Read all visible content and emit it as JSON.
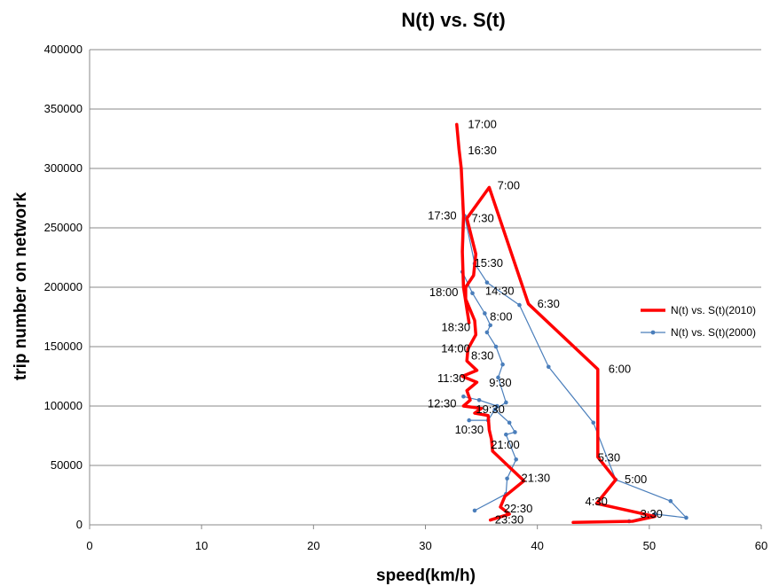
{
  "chart_data": {
    "type": "line",
    "title": "N(t) vs. S(t)",
    "xlabel": "speed(km/h)",
    "ylabel": "trip number on network",
    "xlim": [
      0,
      60
    ],
    "ylim": [
      0,
      400000
    ],
    "xticks": [
      0,
      10,
      20,
      30,
      40,
      50,
      60
    ],
    "yticks": [
      0,
      50000,
      100000,
      150000,
      200000,
      250000,
      300000,
      350000,
      400000
    ],
    "grid": "horizontal",
    "legend_position": "right",
    "colors": {
      "series_2010": "#ff0000",
      "series_2000": "#4a7ebb",
      "grid": "#888888"
    },
    "series": [
      {
        "name": "N(t) vs. S(t)(2010)",
        "points": [
          [
            43.2,
            2000
          ],
          [
            48.5,
            3000
          ],
          [
            50.5,
            7000
          ],
          [
            45.3,
            18000
          ],
          [
            47.0,
            38000
          ],
          [
            45.4,
            57000
          ],
          [
            45.4,
            131000
          ],
          [
            39.2,
            186000
          ],
          [
            35.7,
            284000
          ],
          [
            33.7,
            258000
          ],
          [
            34.5,
            228000
          ],
          [
            34.3,
            210000
          ],
          [
            33.6,
            200000
          ],
          [
            33.6,
            190000
          ],
          [
            34.4,
            172000
          ],
          [
            34.5,
            160000
          ],
          [
            33.8,
            148000
          ],
          [
            33.7,
            138000
          ],
          [
            34.6,
            130000
          ],
          [
            33.3,
            125000
          ],
          [
            34.6,
            120000
          ],
          [
            33.7,
            113000
          ],
          [
            34.0,
            105000
          ],
          [
            33.4,
            100000
          ],
          [
            35.0,
            98000
          ],
          [
            34.4,
            94000
          ],
          [
            35.6,
            92000
          ],
          [
            35.7,
            80000
          ],
          [
            35.9,
            72000
          ],
          [
            36.0,
            62000
          ],
          [
            38.8,
            37000
          ],
          [
            37.1,
            24000
          ],
          [
            36.7,
            15000
          ],
          [
            37.5,
            9000
          ],
          [
            35.8,
            4000
          ]
        ],
        "upper_branch": [
          [
            33.9,
            170000
          ],
          [
            33.4,
            200000
          ],
          [
            33.3,
            230000
          ],
          [
            33.4,
            260000
          ],
          [
            33.2,
            300000
          ],
          [
            33.0,
            316000
          ],
          [
            32.8,
            337000
          ]
        ]
      },
      {
        "name": "N(t) vs. S(t)(2000)",
        "points": [
          [
            48.2,
            3000
          ],
          [
            50.5,
            9000
          ],
          [
            53.3,
            6000
          ],
          [
            51.9,
            20000
          ],
          [
            47.0,
            38000
          ],
          [
            45.0,
            86000
          ],
          [
            41.0,
            133000
          ],
          [
            38.4,
            185000
          ],
          [
            35.5,
            204000
          ],
          [
            34.4,
            220000
          ],
          [
            33.5,
            260000
          ],
          [
            33.3,
            213000
          ],
          [
            34.2,
            195000
          ],
          [
            35.3,
            178000
          ],
          [
            35.8,
            168000
          ],
          [
            35.5,
            162000
          ],
          [
            36.3,
            150000
          ],
          [
            36.9,
            135000
          ],
          [
            36.5,
            124000
          ],
          [
            37.2,
            103000
          ],
          [
            36.2,
            97000
          ],
          [
            37.5,
            86000
          ],
          [
            38.0,
            78000
          ],
          [
            37.2,
            76000
          ],
          [
            38.1,
            55000
          ],
          [
            37.3,
            39000
          ],
          [
            37.2,
            26000
          ],
          [
            34.4,
            12000
          ]
        ],
        "lower_branch": [
          [
            33.9,
            88000
          ],
          [
            35.6,
            88000
          ],
          [
            36.4,
            100000
          ],
          [
            34.8,
            105000
          ],
          [
            33.4,
            108000
          ]
        ]
      }
    ],
    "annotations": [
      {
        "text": "17:00",
        "at": [
          33.0,
          337000
        ]
      },
      {
        "text": "16:30",
        "at": [
          33.0,
          315000
        ]
      },
      {
        "text": "7:00",
        "at": [
          35.8,
          284000
        ]
      },
      {
        "text": "17:30",
        "at": [
          33.3,
          260000
        ]
      },
      {
        "text": "7:30",
        "at": [
          33.8,
          258000
        ]
      },
      {
        "text": "15:30",
        "at": [
          34.2,
          220000
        ]
      },
      {
        "text": "18:00",
        "at": [
          33.6,
          200000
        ]
      },
      {
        "text": "14:30",
        "at": [
          35.5,
          204000
        ]
      },
      {
        "text": "6:30",
        "at": [
          39.2,
          186000
        ]
      },
      {
        "text": "8:00",
        "at": [
          35.6,
          175000
        ]
      },
      {
        "text": "18:30",
        "at": [
          34.6,
          172000
        ]
      },
      {
        "text": "14:00",
        "at": [
          34.5,
          148000
        ]
      },
      {
        "text": "8:30",
        "at": [
          34.4,
          145000
        ]
      },
      {
        "text": "6:00",
        "at": [
          45.4,
          131000
        ]
      },
      {
        "text": "11:30",
        "at": [
          34.0,
          120000
        ]
      },
      {
        "text": "9:30",
        "at": [
          36.8,
          118000
        ]
      },
      {
        "text": "12:30",
        "at": [
          33.6,
          102000
        ]
      },
      {
        "text": "19:30",
        "at": [
          35.3,
          100000
        ]
      },
      {
        "text": "10:30",
        "at": [
          35.0,
          86000
        ]
      },
      {
        "text": "21:00",
        "at": [
          36.0,
          62000
        ]
      },
      {
        "text": "5:30",
        "at": [
          45.4,
          57000
        ]
      },
      {
        "text": "21:30",
        "at": [
          38.8,
          40000
        ]
      },
      {
        "text": "5:00",
        "at": [
          47.0,
          38000
        ]
      },
      {
        "text": "22:30",
        "at": [
          37.0,
          15000
        ]
      },
      {
        "text": "4:30",
        "at": [
          45.3,
          18000
        ]
      },
      {
        "text": "3:30",
        "at": [
          50.3,
          9000
        ]
      },
      {
        "text": "23:30",
        "at": [
          36.2,
          4000
        ]
      }
    ]
  }
}
